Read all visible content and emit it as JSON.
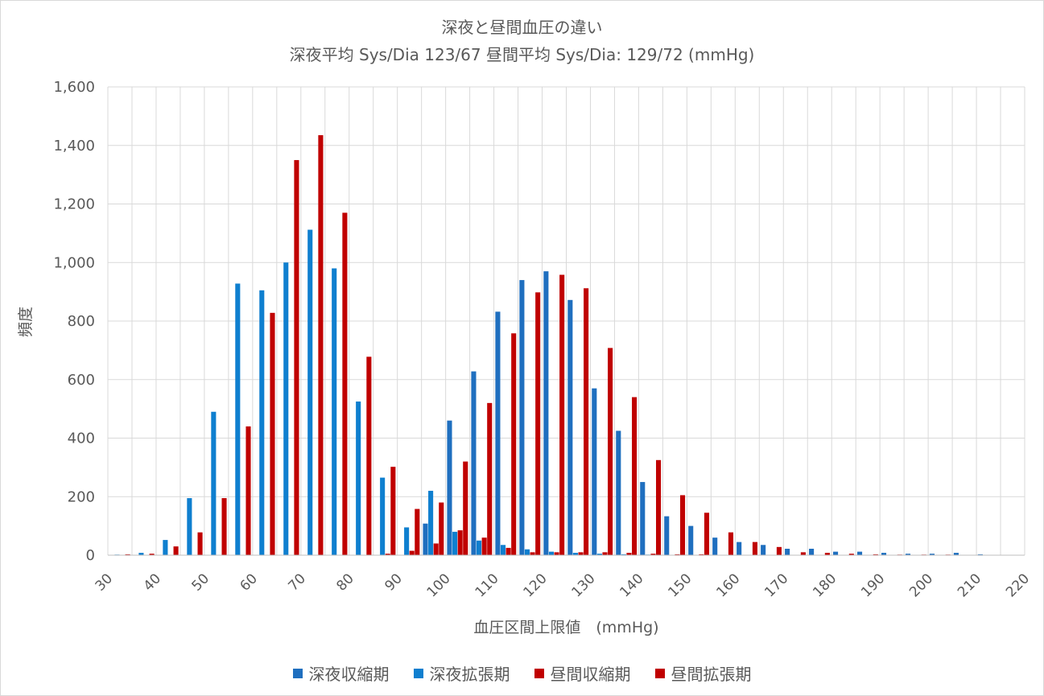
{
  "chart_data": {
    "type": "bar",
    "title": "深夜と昼間血圧の違い",
    "subtitle": "深夜平均 Sys/Dia 123/67  昼間平均   Sys/Dia: 129/72 (mmHg)",
    "xlabel": "血圧区間上限値　(mmHg)",
    "ylabel": "頻度",
    "ylim": [
      0,
      1600
    ],
    "yticks": [
      "0",
      "200",
      "400",
      "600",
      "800",
      "1,000",
      "1,200",
      "1,400",
      "1,600"
    ],
    "xticks": [
      "30",
      "40",
      "50",
      "60",
      "70",
      "80",
      "90",
      "100",
      "110",
      "120",
      "130",
      "140",
      "150",
      "160",
      "170",
      "180",
      "190",
      "200",
      "210",
      "220"
    ],
    "grid": true,
    "legend_position": "bottom",
    "categories": [
      35,
      40,
      45,
      50,
      55,
      60,
      65,
      70,
      75,
      80,
      85,
      90,
      95,
      100,
      105,
      110,
      115,
      120,
      125,
      130,
      135,
      140,
      145,
      150,
      155,
      160,
      165,
      170,
      175,
      180,
      185,
      190,
      195,
      200,
      205,
      210,
      215,
      220
    ],
    "series": [
      {
        "name": "深夜収縮期",
        "color": "#1f6fbf",
        "values": [
          0,
          0,
          0,
          0,
          0,
          0,
          0,
          0,
          0,
          0,
          0,
          0,
          0,
          108,
          460,
          628,
          832,
          940,
          970,
          872,
          570,
          425,
          250,
          133,
          100,
          60,
          45,
          35,
          22,
          22,
          12,
          12,
          8,
          5,
          5,
          8,
          3,
          0
        ]
      },
      {
        "name": "深夜拡張期",
        "color": "#0f7fcf",
        "values": [
          2,
          8,
          52,
          195,
          490,
          928,
          905,
          1000,
          1112,
          980,
          525,
          265,
          95,
          220,
          80,
          50,
          35,
          20,
          12,
          8,
          5,
          3,
          2,
          0,
          0,
          0,
          0,
          0,
          0,
          0,
          0,
          0,
          0,
          0,
          0,
          0,
          0,
          0
        ]
      },
      {
        "name": "昼間収縮期",
        "color": "#c00000",
        "values": [
          0,
          0,
          0,
          0,
          0,
          0,
          0,
          0,
          0,
          0,
          0,
          5,
          15,
          40,
          85,
          60,
          25,
          10,
          10,
          10,
          10,
          8,
          5,
          3,
          3,
          0,
          0,
          0,
          0,
          0,
          0,
          0,
          0,
          0,
          0,
          0,
          0,
          0
        ]
      },
      {
        "name": "昼間拡張期",
        "color": "#c00000",
        "values": [
          3,
          5,
          30,
          78,
          195,
          440,
          828,
          1350,
          1435,
          1170,
          678,
          302,
          158,
          180,
          320,
          520,
          758,
          898,
          958,
          912,
          708,
          540,
          325,
          205,
          145,
          78,
          45,
          28,
          10,
          8,
          5,
          3,
          2,
          2,
          2,
          0,
          0,
          0
        ]
      }
    ]
  }
}
